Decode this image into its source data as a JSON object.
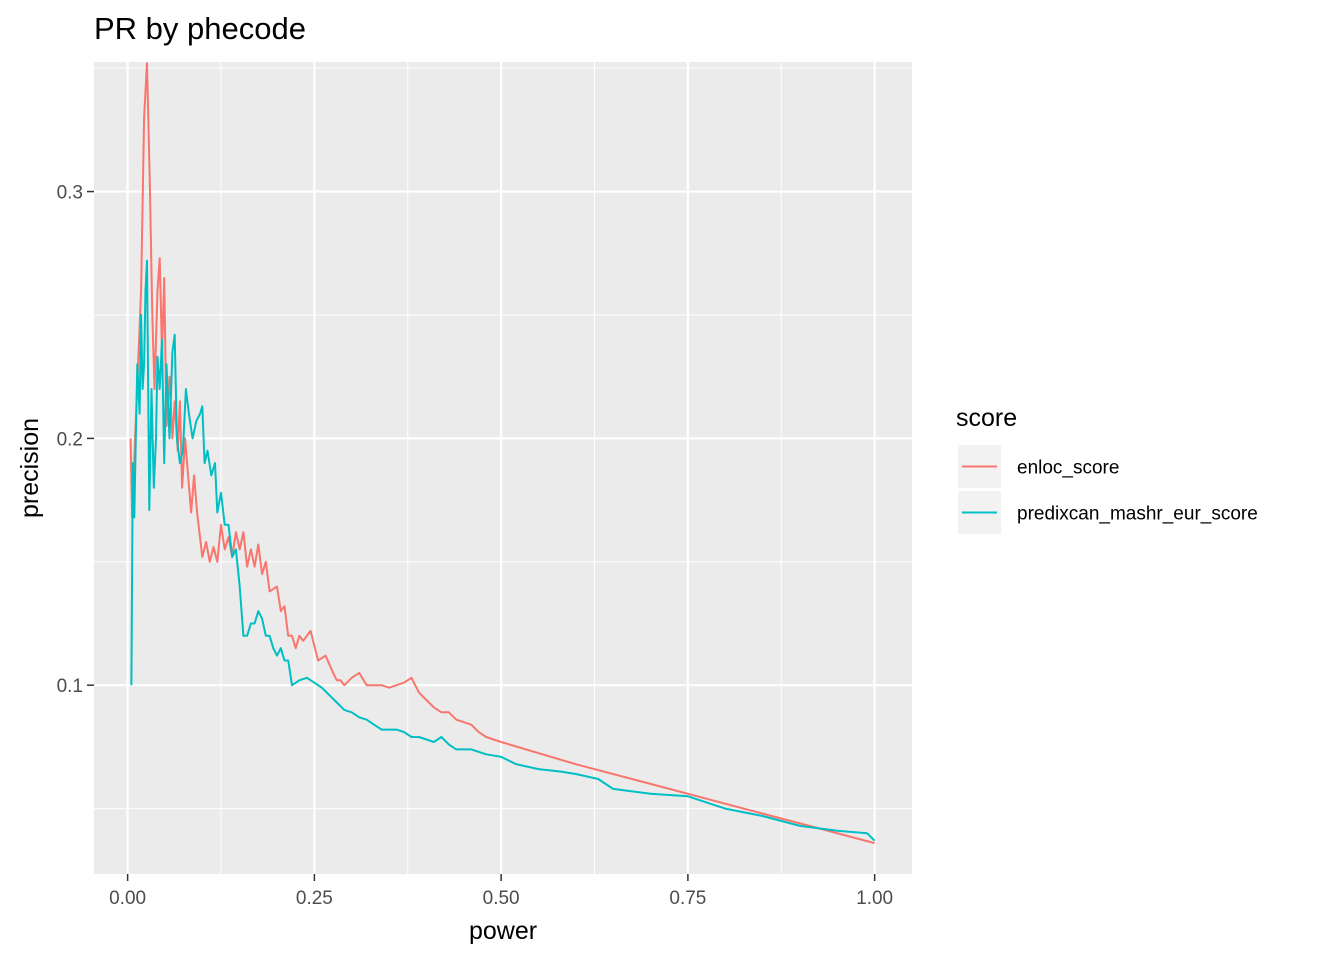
{
  "chart_data": {
    "type": "line",
    "title": "PR by phecode",
    "xlabel": "power",
    "ylabel": "precision",
    "xlim": [
      -0.045,
      1.05
    ],
    "ylim": [
      0.0235,
      0.3525
    ],
    "x_ticks": [
      0.0,
      0.25,
      0.5,
      0.75,
      1.0
    ],
    "x_tick_labels": [
      "0.00",
      "0.25",
      "0.50",
      "0.75",
      "1.00"
    ],
    "y_ticks": [
      0.1,
      0.2,
      0.3
    ],
    "y_tick_labels": [
      "0.1",
      "0.2",
      "0.3"
    ],
    "grid": true,
    "legend": {
      "title": "score",
      "position": "right"
    },
    "series": [
      {
        "name": "enloc_score",
        "color": "#F8766D",
        "points": [
          [
            0.004,
            0.2
          ],
          [
            0.006,
            0.168
          ],
          [
            0.01,
            0.2
          ],
          [
            0.014,
            0.23
          ],
          [
            0.018,
            0.26
          ],
          [
            0.022,
            0.33
          ],
          [
            0.026,
            0.352
          ],
          [
            0.03,
            0.3
          ],
          [
            0.033,
            0.25
          ],
          [
            0.036,
            0.22
          ],
          [
            0.04,
            0.26
          ],
          [
            0.043,
            0.273
          ],
          [
            0.046,
            0.235
          ],
          [
            0.049,
            0.265
          ],
          [
            0.052,
            0.205
          ],
          [
            0.056,
            0.225
          ],
          [
            0.06,
            0.2
          ],
          [
            0.063,
            0.215
          ],
          [
            0.067,
            0.195
          ],
          [
            0.07,
            0.215
          ],
          [
            0.073,
            0.18
          ],
          [
            0.077,
            0.2
          ],
          [
            0.081,
            0.185
          ],
          [
            0.085,
            0.17
          ],
          [
            0.089,
            0.185
          ],
          [
            0.093,
            0.17
          ],
          [
            0.1,
            0.152
          ],
          [
            0.105,
            0.158
          ],
          [
            0.11,
            0.15
          ],
          [
            0.115,
            0.156
          ],
          [
            0.12,
            0.15
          ],
          [
            0.125,
            0.165
          ],
          [
            0.13,
            0.155
          ],
          [
            0.135,
            0.16
          ],
          [
            0.14,
            0.152
          ],
          [
            0.145,
            0.162
          ],
          [
            0.15,
            0.155
          ],
          [
            0.155,
            0.162
          ],
          [
            0.16,
            0.148
          ],
          [
            0.165,
            0.155
          ],
          [
            0.17,
            0.148
          ],
          [
            0.175,
            0.157
          ],
          [
            0.18,
            0.145
          ],
          [
            0.185,
            0.15
          ],
          [
            0.19,
            0.138
          ],
          [
            0.2,
            0.14
          ],
          [
            0.205,
            0.13
          ],
          [
            0.21,
            0.132
          ],
          [
            0.215,
            0.12
          ],
          [
            0.22,
            0.12
          ],
          [
            0.225,
            0.115
          ],
          [
            0.23,
            0.12
          ],
          [
            0.235,
            0.118
          ],
          [
            0.245,
            0.122
          ],
          [
            0.255,
            0.11
          ],
          [
            0.265,
            0.112
          ],
          [
            0.275,
            0.105
          ],
          [
            0.28,
            0.102
          ],
          [
            0.285,
            0.102
          ],
          [
            0.29,
            0.1
          ],
          [
            0.3,
            0.103
          ],
          [
            0.31,
            0.105
          ],
          [
            0.32,
            0.1
          ],
          [
            0.33,
            0.1
          ],
          [
            0.34,
            0.1
          ],
          [
            0.35,
            0.099
          ],
          [
            0.36,
            0.1
          ],
          [
            0.37,
            0.101
          ],
          [
            0.38,
            0.103
          ],
          [
            0.385,
            0.1
          ],
          [
            0.39,
            0.097
          ],
          [
            0.4,
            0.094
          ],
          [
            0.41,
            0.091
          ],
          [
            0.42,
            0.089
          ],
          [
            0.43,
            0.089
          ],
          [
            0.44,
            0.086
          ],
          [
            0.45,
            0.085
          ],
          [
            0.46,
            0.084
          ],
          [
            0.47,
            0.081
          ],
          [
            0.48,
            0.079
          ],
          [
            0.5,
            0.077
          ],
          [
            0.6,
            0.068
          ],
          [
            0.7,
            0.06
          ],
          [
            0.8,
            0.052
          ],
          [
            0.9,
            0.044
          ],
          [
            1.0,
            0.036
          ]
        ]
      },
      {
        "name": "predixcan_mashr_eur_score",
        "color": "#00BFC4",
        "points": [
          [
            0.005,
            0.1
          ],
          [
            0.007,
            0.19
          ],
          [
            0.009,
            0.168
          ],
          [
            0.011,
            0.2
          ],
          [
            0.013,
            0.23
          ],
          [
            0.016,
            0.21
          ],
          [
            0.018,
            0.25
          ],
          [
            0.02,
            0.22
          ],
          [
            0.022,
            0.23
          ],
          [
            0.024,
            0.26
          ],
          [
            0.026,
            0.272
          ],
          [
            0.029,
            0.171
          ],
          [
            0.032,
            0.22
          ],
          [
            0.035,
            0.18
          ],
          [
            0.038,
            0.2
          ],
          [
            0.04,
            0.233
          ],
          [
            0.043,
            0.22
          ],
          [
            0.046,
            0.24
          ],
          [
            0.049,
            0.19
          ],
          [
            0.052,
            0.23
          ],
          [
            0.056,
            0.2
          ],
          [
            0.06,
            0.235
          ],
          [
            0.063,
            0.242
          ],
          [
            0.066,
            0.2
          ],
          [
            0.07,
            0.19
          ],
          [
            0.074,
            0.195
          ],
          [
            0.078,
            0.22
          ],
          [
            0.082,
            0.21
          ],
          [
            0.087,
            0.2
          ],
          [
            0.092,
            0.207
          ],
          [
            0.097,
            0.21
          ],
          [
            0.1,
            0.213
          ],
          [
            0.103,
            0.19
          ],
          [
            0.107,
            0.195
          ],
          [
            0.112,
            0.185
          ],
          [
            0.117,
            0.19
          ],
          [
            0.12,
            0.17
          ],
          [
            0.125,
            0.178
          ],
          [
            0.13,
            0.165
          ],
          [
            0.135,
            0.165
          ],
          [
            0.14,
            0.152
          ],
          [
            0.145,
            0.155
          ],
          [
            0.15,
            0.14
          ],
          [
            0.155,
            0.12
          ],
          [
            0.16,
            0.12
          ],
          [
            0.165,
            0.125
          ],
          [
            0.17,
            0.125
          ],
          [
            0.175,
            0.13
          ],
          [
            0.18,
            0.127
          ],
          [
            0.185,
            0.12
          ],
          [
            0.19,
            0.12
          ],
          [
            0.195,
            0.115
          ],
          [
            0.2,
            0.112
          ],
          [
            0.205,
            0.115
          ],
          [
            0.21,
            0.11
          ],
          [
            0.215,
            0.11
          ],
          [
            0.22,
            0.1
          ],
          [
            0.23,
            0.102
          ],
          [
            0.24,
            0.103
          ],
          [
            0.25,
            0.101
          ],
          [
            0.26,
            0.099
          ],
          [
            0.27,
            0.096
          ],
          [
            0.28,
            0.093
          ],
          [
            0.29,
            0.09
          ],
          [
            0.3,
            0.089
          ],
          [
            0.31,
            0.087
          ],
          [
            0.32,
            0.086
          ],
          [
            0.33,
            0.084
          ],
          [
            0.34,
            0.082
          ],
          [
            0.35,
            0.082
          ],
          [
            0.36,
            0.082
          ],
          [
            0.37,
            0.081
          ],
          [
            0.38,
            0.079
          ],
          [
            0.39,
            0.079
          ],
          [
            0.4,
            0.078
          ],
          [
            0.41,
            0.077
          ],
          [
            0.42,
            0.079
          ],
          [
            0.43,
            0.076
          ],
          [
            0.44,
            0.074
          ],
          [
            0.45,
            0.074
          ],
          [
            0.46,
            0.074
          ],
          [
            0.48,
            0.072
          ],
          [
            0.5,
            0.071
          ],
          [
            0.52,
            0.068
          ],
          [
            0.55,
            0.066
          ],
          [
            0.58,
            0.065
          ],
          [
            0.6,
            0.064
          ],
          [
            0.63,
            0.062
          ],
          [
            0.65,
            0.058
          ],
          [
            0.7,
            0.056
          ],
          [
            0.75,
            0.055
          ],
          [
            0.78,
            0.052
          ],
          [
            0.8,
            0.05
          ],
          [
            0.85,
            0.047
          ],
          [
            0.9,
            0.043
          ],
          [
            0.95,
            0.041
          ],
          [
            0.99,
            0.04
          ],
          [
            1.0,
            0.037
          ]
        ]
      }
    ]
  }
}
